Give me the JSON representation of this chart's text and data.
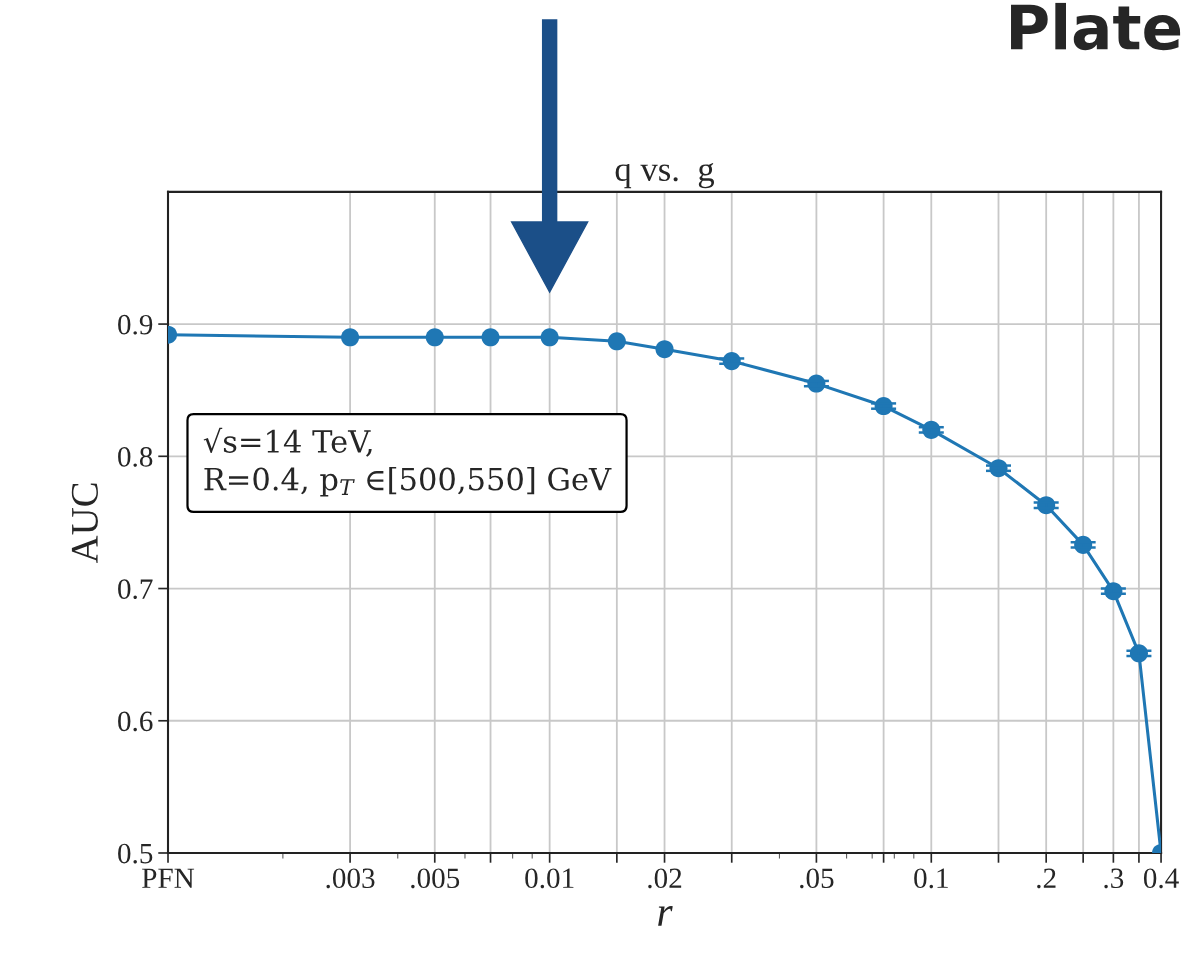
{
  "chart_data": {
    "type": "line",
    "title": "q vs.  g",
    "xlabel": "r",
    "ylabel": "AUC",
    "x": [
      0.001,
      0.003,
      0.005,
      0.007,
      0.01,
      0.015,
      0.02,
      0.03,
      0.05,
      0.075,
      0.1,
      0.15,
      0.2,
      0.25,
      0.3,
      0.35,
      0.4
    ],
    "series": [
      {
        "color": "#1f77b4",
        "values": [
          0.892,
          0.89,
          0.89,
          0.89,
          0.89,
          0.887,
          0.881,
          0.872,
          0.855,
          0.838,
          0.82,
          0.791,
          0.763,
          0.733,
          0.698,
          0.651,
          0.5
        ],
        "errors": [
          null,
          null,
          null,
          null,
          null,
          null,
          null,
          0.002,
          0.002,
          0.002,
          0.002,
          0.002,
          0.002,
          0.002,
          0.002,
          0.002,
          null
        ]
      }
    ],
    "log": "x",
    "xlim": [
      0.001,
      0.4
    ],
    "xticks": [
      {
        "value": 0.001,
        "label": "PFN"
      },
      {
        "value": 0.003,
        "label": ".003"
      },
      {
        "value": 0.005,
        "label": ".005"
      },
      {
        "value": 0.007,
        "label": null
      },
      {
        "value": 0.01,
        "label": "0.01"
      },
      {
        "value": 0.015,
        "label": null
      },
      {
        "value": 0.02,
        "label": ".02"
      },
      {
        "value": 0.03,
        "label": null
      },
      {
        "value": 0.05,
        "label": ".05"
      },
      {
        "value": 0.075,
        "label": null
      },
      {
        "value": 0.1,
        "label": "0.1"
      },
      {
        "value": 0.15,
        "label": null
      },
      {
        "value": 0.2,
        "label": ".2"
      },
      {
        "value": 0.25,
        "label": null
      },
      {
        "value": 0.3,
        "label": ".3"
      },
      {
        "value": 0.35,
        "label": null
      },
      {
        "value": 0.4,
        "label": "0.4"
      }
    ],
    "ylim": [
      0.5,
      1.0
    ],
    "yticks": [
      0.5,
      0.6,
      0.7,
      0.8,
      0.9
    ],
    "grid": true,
    "marker": "circle",
    "line_style": "solid",
    "annotations": [
      "√s=14 TeV,\nR=0.4, p$_{T}$ ∈[500,550] GeV",
      "Plate"
    ]
  }
}
